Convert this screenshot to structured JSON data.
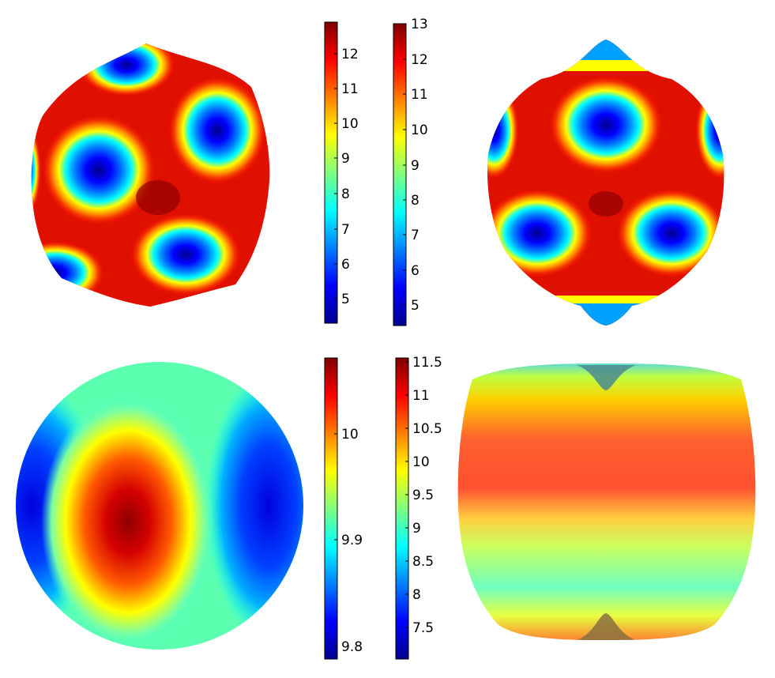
{
  "jet_colors": [
    "#00008f",
    "#0000ff",
    "#007fff",
    "#00ffff",
    "#7fff7f",
    "#ffff00",
    "#ff7f00",
    "#ff0000",
    "#7f0000"
  ],
  "colorbars": [
    {
      "ticks": [
        "12",
        "11",
        "10",
        "9",
        "8",
        "7",
        "6",
        "5"
      ]
    },
    {
      "ticks": [
        "13",
        "12",
        "11",
        "10",
        "9",
        "8",
        "7",
        "6",
        "5"
      ]
    },
    {
      "ticks": [
        "10",
        "9.9",
        "9.8"
      ]
    },
    {
      "ticks": [
        "11.5",
        "11",
        "10.5",
        "10",
        "9.5",
        "9",
        "8.5",
        "8",
        "7.5"
      ]
    }
  ],
  "panels": [
    {
      "subject": "deformed sphere with blue spots (tilted view)"
    },
    {
      "subject": "deformed sphere with blue spots and polar tips"
    },
    {
      "subject": "sphere with red vertical blob"
    },
    {
      "subject": "sphere with horizontal color bands and polar dimples"
    }
  ]
}
